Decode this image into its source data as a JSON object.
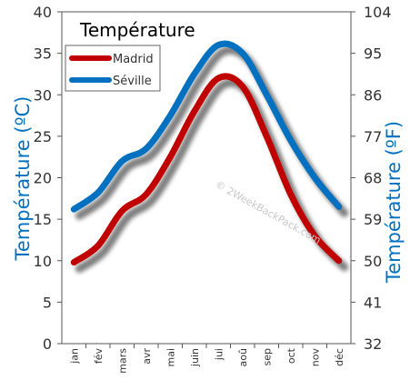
{
  "chart_data": {
    "type": "line",
    "title": "Température",
    "categories": [
      "jan",
      "fév",
      "mars",
      "avr",
      "mai",
      "juin",
      "jui",
      "aoû",
      "sep",
      "oct",
      "nov",
      "déc"
    ],
    "series": [
      {
        "name": "Madrid",
        "color": "#c00000",
        "values": [
          9.8,
          11.8,
          16.0,
          18.0,
          22.5,
          28.0,
          32.0,
          31.0,
          25.0,
          18.0,
          13.0,
          10.0
        ]
      },
      {
        "name": "Séville",
        "color": "#0070c0",
        "values": [
          16.2,
          18.2,
          22.0,
          23.5,
          27.5,
          32.5,
          36.0,
          35.0,
          30.0,
          24.5,
          20.0,
          16.5
        ]
      }
    ],
    "y_left": {
      "label": "Température (ºC)",
      "ticks": [
        "0",
        "5",
        "10",
        "15",
        "20",
        "25",
        "30",
        "35",
        "40"
      ],
      "min": 0,
      "max": 40
    },
    "y_right": {
      "label": "Température (ºF)",
      "ticks": [
        "32",
        "41",
        "50",
        "59",
        "68",
        "77",
        "86",
        "95",
        "104"
      ],
      "min": 32,
      "max": 104
    },
    "grid": "none",
    "legend": "top-left",
    "watermark": "© 2WeekBackPack.com"
  }
}
